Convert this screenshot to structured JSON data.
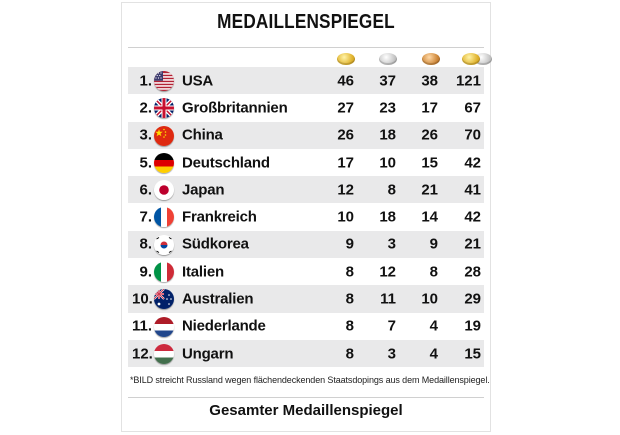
{
  "title": "MEDAILLENSPIEGEL",
  "columns": [
    "gold",
    "silver",
    "bronze",
    "total"
  ],
  "rows": [
    {
      "rank": "1.",
      "country": "USA",
      "flag": "usa-flag-icon",
      "gold": "46",
      "silver": "37",
      "bronze": "38",
      "total": "121"
    },
    {
      "rank": "2.",
      "country": "Großbritannien",
      "flag": "uk-flag-icon",
      "gold": "27",
      "silver": "23",
      "bronze": "17",
      "total": "67"
    },
    {
      "rank": "3.",
      "country": "China",
      "flag": "china-flag-icon",
      "gold": "26",
      "silver": "18",
      "bronze": "26",
      "total": "70"
    },
    {
      "rank": "5.",
      "country": "Deutschland",
      "flag": "germany-flag-icon",
      "gold": "17",
      "silver": "10",
      "bronze": "15",
      "total": "42"
    },
    {
      "rank": "6.",
      "country": "Japan",
      "flag": "japan-flag-icon",
      "gold": "12",
      "silver": "8",
      "bronze": "21",
      "total": "41"
    },
    {
      "rank": "7.",
      "country": "Frankreich",
      "flag": "france-flag-icon",
      "gold": "10",
      "silver": "18",
      "bronze": "14",
      "total": "42"
    },
    {
      "rank": "8.",
      "country": "Südkorea",
      "flag": "south-korea-flag-icon",
      "gold": "9",
      "silver": "3",
      "bronze": "9",
      "total": "21"
    },
    {
      "rank": "9.",
      "country": "Italien",
      "flag": "italy-flag-icon",
      "gold": "8",
      "silver": "12",
      "bronze": "8",
      "total": "28"
    },
    {
      "rank": "10.",
      "country": "Australien",
      "flag": "australia-flag-icon",
      "gold": "8",
      "silver": "11",
      "bronze": "10",
      "total": "29"
    },
    {
      "rank": "11.",
      "country": "Niederlande",
      "flag": "netherlands-flag-icon",
      "gold": "8",
      "silver": "7",
      "bronze": "4",
      "total": "19"
    },
    {
      "rank": "12.",
      "country": "Ungarn",
      "flag": "hungary-flag-icon",
      "gold": "8",
      "silver": "3",
      "bronze": "4",
      "total": "15"
    }
  ],
  "footnote": "*BILD streicht Russland wegen flächendeckenden Staatsdopings aus dem Medaillenspiegel.",
  "footer_link": "Gesamter Medaillenspiegel",
  "colors": {
    "row_shade": "#e9e9ea",
    "gold": "#e1b531",
    "silver": "#c9c9c9",
    "bronze": "#d08a3c"
  }
}
